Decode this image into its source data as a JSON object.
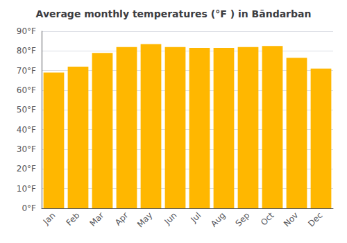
{
  "chart_data": {
    "type": "bar",
    "title": "Average monthly temperatures (°F ) in Bāndarban",
    "categories": [
      "Jan",
      "Feb",
      "Mar",
      "Apr",
      "May",
      "Jun",
      "Jul",
      "Aug",
      "Sep",
      "Oct",
      "Nov",
      "Dec"
    ],
    "values": [
      69,
      72,
      79,
      82,
      83.5,
      82,
      81.5,
      81.5,
      82,
      82.5,
      76.5,
      71
    ],
    "color": "#FFB700",
    "ylim": [
      0,
      90
    ],
    "yticks": [
      {
        "value": 0,
        "label": "0°F"
      },
      {
        "value": 10,
        "label": "10°F"
      },
      {
        "value": 20,
        "label": "20°F"
      },
      {
        "value": 30,
        "label": "30°F"
      },
      {
        "value": 40,
        "label": "40°F"
      },
      {
        "value": 50,
        "label": "50°F"
      },
      {
        "value": 60,
        "label": "60°F"
      },
      {
        "value": 70,
        "label": "70°F"
      },
      {
        "value": 80,
        "label": "80°F"
      },
      {
        "value": 90,
        "label": "90°F"
      }
    ],
    "grid": true
  }
}
